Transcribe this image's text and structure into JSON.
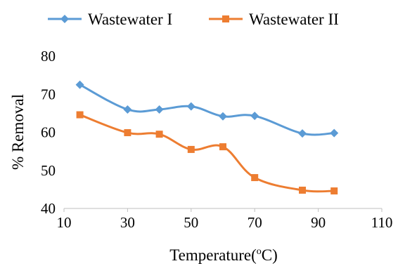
{
  "chart_data": {
    "type": "line",
    "title": "",
    "xlabel": "Temperature(",
    "xlabel_sup": "o",
    "xlabel_end": "C)",
    "ylabel": "% Removal",
    "xlim": [
      10,
      110
    ],
    "ylim": [
      40,
      80
    ],
    "xticks": [
      10,
      30,
      50,
      70,
      90,
      110
    ],
    "yticks": [
      40,
      50,
      60,
      70,
      80
    ],
    "grid": false,
    "legend": "top",
    "series": [
      {
        "name": "Wastewater I",
        "color": "#5B9BD5",
        "marker": "diamond",
        "smooth": true,
        "x": [
          15,
          30,
          40,
          50,
          60,
          70,
          85,
          95
        ],
        "y": [
          72.5,
          66,
          66,
          66.8,
          64.2,
          64.3,
          59.7,
          59.8
        ]
      },
      {
        "name": "Wastewater II",
        "color": "#ED7D31",
        "marker": "square",
        "smooth": true,
        "x": [
          15,
          30,
          40,
          50,
          60,
          70,
          85,
          95
        ],
        "y": [
          64.6,
          59.9,
          59.5,
          55.5,
          56.2,
          48.1,
          44.8,
          44.6
        ]
      }
    ]
  }
}
